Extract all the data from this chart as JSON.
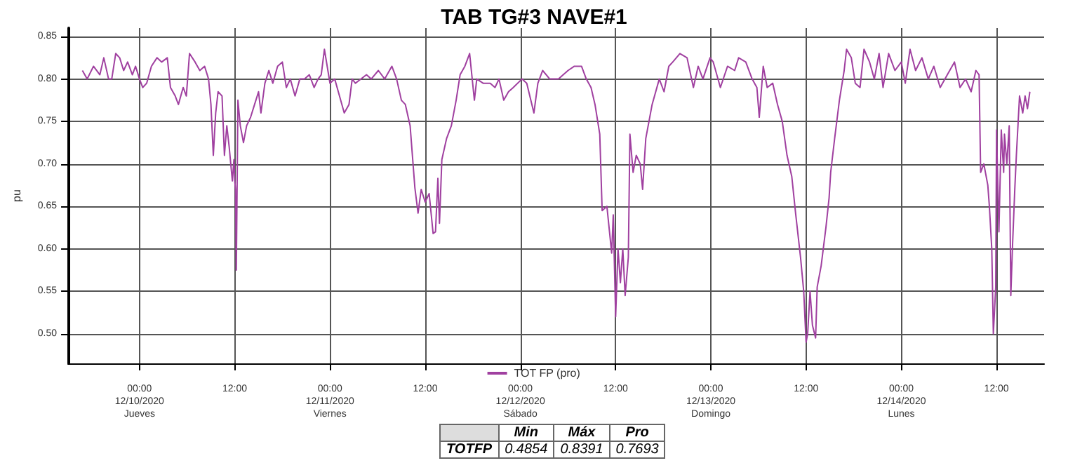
{
  "chart_data": {
    "type": "line",
    "title": "TAB TG#3 NAVE#1",
    "ylabel": "pu",
    "x": [
      "2020-12-09T16:48",
      "2020-12-09T17:24",
      "2020-12-09T18:12",
      "2020-12-09T19:00",
      "2020-12-09T19:30",
      "2020-12-09T20:06",
      "2020-12-09T20:30",
      "2020-12-09T21:00",
      "2020-12-09T21:30",
      "2020-12-09T22:00",
      "2020-12-09T22:30",
      "2020-12-09T23:06",
      "2020-12-09T23:30",
      "2020-12-10T00:00",
      "2020-12-10T00:24",
      "2020-12-10T00:54",
      "2020-12-10T01:30",
      "2020-12-10T02:12",
      "2020-12-10T02:48",
      "2020-12-10T03:30",
      "2020-12-10T03:54",
      "2020-12-10T04:30",
      "2020-12-10T04:54",
      "2020-12-10T05:30",
      "2020-12-10T05:54",
      "2020-12-10T06:18",
      "2020-12-10T07:00",
      "2020-12-10T07:36",
      "2020-12-10T08:12",
      "2020-12-10T08:42",
      "2020-12-10T09:00",
      "2020-12-10T09:18",
      "2020-12-10T09:36",
      "2020-12-10T09:54",
      "2020-12-10T10:24",
      "2020-12-10T10:42",
      "2020-12-10T11:00",
      "2020-12-10T11:18",
      "2020-12-10T11:30",
      "2020-12-10T11:42",
      "2020-12-10T11:54",
      "2020-12-10T12:00",
      "2020-12-10T12:06",
      "2020-12-10T12:12",
      "2020-12-10T12:24",
      "2020-12-10T12:42",
      "2020-12-10T13:06",
      "2020-12-10T13:30",
      "2020-12-10T14:00",
      "2020-12-10T14:30",
      "2020-12-10T15:00",
      "2020-12-10T15:18",
      "2020-12-10T15:48",
      "2020-12-10T16:18",
      "2020-12-10T16:48",
      "2020-12-10T17:24",
      "2020-12-10T18:00",
      "2020-12-10T18:30",
      "2020-12-10T19:00",
      "2020-12-10T19:36",
      "2020-12-10T20:12",
      "2020-12-10T20:48",
      "2020-12-10T21:24",
      "2020-12-10T22:00",
      "2020-12-10T22:30",
      "2020-12-10T22:54",
      "2020-12-10T23:18",
      "2020-12-11T00:00",
      "2020-12-11T00:36",
      "2020-12-11T01:12",
      "2020-12-11T01:48",
      "2020-12-11T02:24",
      "2020-12-11T02:48",
      "2020-12-11T03:12",
      "2020-12-11T04:36",
      "2020-12-11T05:12",
      "2020-12-11T06:06",
      "2020-12-11T06:54",
      "2020-12-11T07:48",
      "2020-12-11T08:24",
      "2020-12-11T09:00",
      "2020-12-11T09:30",
      "2020-12-11T10:06",
      "2020-12-11T10:42",
      "2020-12-11T11:06",
      "2020-12-11T11:30",
      "2020-12-11T12:00",
      "2020-12-11T12:30",
      "2020-12-11T13:00",
      "2020-12-11T13:18",
      "2020-12-11T13:36",
      "2020-12-11T13:48",
      "2020-12-11T14:06",
      "2020-12-11T14:42",
      "2020-12-11T15:18",
      "2020-12-11T15:54",
      "2020-12-11T16:24",
      "2020-12-11T17:00",
      "2020-12-11T17:36",
      "2020-12-11T18:12",
      "2020-12-11T18:30",
      "2020-12-11T19:18",
      "2020-12-11T20:12",
      "2020-12-11T20:48",
      "2020-12-11T21:18",
      "2020-12-11T21:54",
      "2020-12-11T22:30",
      "2020-12-11T23:06",
      "2020-12-12T00:12",
      "2020-12-12T00:48",
      "2020-12-12T01:42",
      "2020-12-12T02:12",
      "2020-12-12T02:48",
      "2020-12-12T03:42",
      "2020-12-12T04:48",
      "2020-12-12T06:00",
      "2020-12-12T06:48",
      "2020-12-12T07:42",
      "2020-12-12T08:18",
      "2020-12-12T08:54",
      "2020-12-12T09:24",
      "2020-12-12T10:00",
      "2020-12-12T10:18",
      "2020-12-12T10:54",
      "2020-12-12T11:30",
      "2020-12-12T11:42",
      "2020-12-12T12:00",
      "2020-12-12T12:18",
      "2020-12-12T12:36",
      "2020-12-12T12:54",
      "2020-12-12T13:12",
      "2020-12-12T13:36",
      "2020-12-12T13:48",
      "2020-12-12T14:12",
      "2020-12-12T14:36",
      "2020-12-12T15:06",
      "2020-12-12T15:24",
      "2020-12-12T15:48",
      "2020-12-12T16:36",
      "2020-12-12T17:30",
      "2020-12-12T18:06",
      "2020-12-12T18:42",
      "2020-12-12T19:12",
      "2020-12-12T20:06",
      "2020-12-12T21:00",
      "2020-12-12T21:48",
      "2020-12-12T22:24",
      "2020-12-12T23:00",
      "2020-12-12T23:54",
      "2020-12-13T00:18",
      "2020-12-13T01:12",
      "2020-12-13T02:06",
      "2020-12-13T03:00",
      "2020-12-13T03:30",
      "2020-12-13T04:24",
      "2020-12-13T05:12",
      "2020-12-13T05:48",
      "2020-12-13T06:06",
      "2020-12-13T06:36",
      "2020-12-13T07:06",
      "2020-12-13T07:48",
      "2020-12-13T08:24",
      "2020-12-13T09:00",
      "2020-12-13T09:36",
      "2020-12-13T10:12",
      "2020-12-13T10:42",
      "2020-12-13T11:18",
      "2020-12-13T11:42",
      "2020-12-13T12:00",
      "2020-12-13T12:12",
      "2020-12-13T12:30",
      "2020-12-13T12:48",
      "2020-12-13T13:12",
      "2020-12-13T13:24",
      "2020-12-13T13:54",
      "2020-12-13T14:30",
      "2020-12-13T14:54",
      "2020-12-13T15:06",
      "2020-12-13T15:36",
      "2020-12-13T16:12",
      "2020-12-13T16:48",
      "2020-12-13T17:06",
      "2020-12-13T17:42",
      "2020-12-13T18:12",
      "2020-12-13T18:48",
      "2020-12-13T19:18",
      "2020-12-13T20:00",
      "2020-12-13T20:36",
      "2020-12-13T21:12",
      "2020-12-13T21:42",
      "2020-12-13T22:24",
      "2020-12-13T23:12",
      "2020-12-14T00:00",
      "2020-12-14T00:30",
      "2020-12-14T01:06",
      "2020-12-14T01:48",
      "2020-12-14T02:36",
      "2020-12-14T03:24",
      "2020-12-14T04:06",
      "2020-12-14T04:54",
      "2020-12-14T05:48",
      "2020-12-14T06:42",
      "2020-12-14T07:24",
      "2020-12-14T08:06",
      "2020-12-14T08:48",
      "2020-12-14T09:24",
      "2020-12-14T09:48",
      "2020-12-14T10:00",
      "2020-12-14T10:24",
      "2020-12-14T10:54",
      "2020-12-14T11:06",
      "2020-12-14T11:24",
      "2020-12-14T11:36",
      "2020-12-14T11:54",
      "2020-12-14T12:00",
      "2020-12-14T12:18",
      "2020-12-14T12:36",
      "2020-12-14T12:54",
      "2020-12-14T13:00",
      "2020-12-14T13:18",
      "2020-12-14T13:36",
      "2020-12-14T13:48",
      "2020-12-14T14:00",
      "2020-12-14T14:18",
      "2020-12-14T14:30",
      "2020-12-14T14:54",
      "2020-12-14T15:18",
      "2020-12-14T15:36",
      "2020-12-14T15:54",
      "2020-12-14T16:12"
    ],
    "series": [
      {
        "name": "TOT FP (pro)",
        "color": "#a040a0",
        "values": [
          0.81,
          0.8,
          0.815,
          0.805,
          0.825,
          0.8,
          0.8,
          0.83,
          0.825,
          0.81,
          0.82,
          0.805,
          0.815,
          0.8,
          0.79,
          0.795,
          0.815,
          0.825,
          0.82,
          0.825,
          0.79,
          0.78,
          0.77,
          0.79,
          0.78,
          0.83,
          0.82,
          0.81,
          0.815,
          0.8,
          0.77,
          0.71,
          0.76,
          0.785,
          0.78,
          0.71,
          0.745,
          0.72,
          0.7,
          0.68,
          0.705,
          0.68,
          0.67,
          0.575,
          0.775,
          0.745,
          0.725,
          0.745,
          0.755,
          0.77,
          0.785,
          0.76,
          0.795,
          0.81,
          0.795,
          0.815,
          0.82,
          0.79,
          0.8,
          0.78,
          0.8,
          0.8,
          0.805,
          0.79,
          0.8,
          0.805,
          0.835,
          0.795,
          0.8,
          0.78,
          0.76,
          0.77,
          0.8,
          0.795,
          0.805,
          0.8,
          0.81,
          0.8,
          0.815,
          0.8,
          0.775,
          0.77,
          0.745,
          0.672,
          0.642,
          0.67,
          0.655,
          0.665,
          0.618,
          0.62,
          0.683,
          0.63,
          0.705,
          0.73,
          0.745,
          0.775,
          0.805,
          0.815,
          0.83,
          0.775,
          0.8,
          0.795,
          0.795,
          0.79,
          0.8,
          0.775,
          0.785,
          0.79,
          0.8,
          0.795,
          0.76,
          0.795,
          0.81,
          0.8,
          0.8,
          0.81,
          0.815,
          0.815,
          0.8,
          0.79,
          0.77,
          0.735,
          0.645,
          0.65,
          0.595,
          0.64,
          0.52,
          0.6,
          0.56,
          0.6,
          0.545,
          0.59,
          0.735,
          0.69,
          0.71,
          0.7,
          0.67,
          0.73,
          0.77,
          0.8,
          0.785,
          0.815,
          0.82,
          0.83,
          0.825,
          0.79,
          0.815,
          0.8,
          0.825,
          0.82,
          0.79,
          0.815,
          0.81,
          0.825,
          0.82,
          0.8,
          0.79,
          0.755,
          0.815,
          0.79,
          0.795,
          0.77,
          0.75,
          0.71,
          0.685,
          0.64,
          0.59,
          0.55,
          0.49,
          0.5,
          0.55,
          0.51,
          0.495,
          0.555,
          0.58,
          0.625,
          0.66,
          0.69,
          0.73,
          0.775,
          0.81,
          0.835,
          0.825,
          0.795,
          0.79,
          0.835,
          0.82,
          0.8,
          0.83,
          0.79,
          0.83,
          0.81,
          0.82,
          0.795,
          0.835,
          0.81,
          0.825,
          0.8,
          0.815,
          0.79,
          0.805,
          0.82,
          0.79,
          0.8,
          0.785,
          0.81,
          0.805,
          0.69,
          0.7,
          0.675,
          0.65,
          0.6,
          0.5,
          0.555,
          0.74,
          0.62,
          0.74,
          0.69,
          0.735,
          0.7,
          0.745,
          0.545,
          0.6,
          0.67,
          0.71,
          0.78,
          0.76,
          0.78,
          0.765,
          0.785
        ]
      }
    ],
    "xlim": [
      "2020-12-09T15:00",
      "2020-12-14T18:00"
    ],
    "xticks": [
      {
        "value": "2020-12-10T00:00",
        "label": "00:00\n12/10/2020\nJueves"
      },
      {
        "value": "2020-12-10T12:00",
        "label": "12:00"
      },
      {
        "value": "2020-12-11T00:00",
        "label": "00:00\n12/11/2020\nViernes"
      },
      {
        "value": "2020-12-11T12:00",
        "label": "12:00"
      },
      {
        "value": "2020-12-12T00:00",
        "label": "00:00\n12/12/2020\nSábado"
      },
      {
        "value": "2020-12-12T12:00",
        "label": "12:00"
      },
      {
        "value": "2020-12-13T00:00",
        "label": "00:00\n12/13/2020\nDomingo"
      },
      {
        "value": "2020-12-13T12:00",
        "label": "12:00"
      },
      {
        "value": "2020-12-14T00:00",
        "label": "00:00\n12/14/2020\nLunes"
      },
      {
        "value": "2020-12-14T12:00",
        "label": "12:00"
      }
    ],
    "ylim": [
      0.465,
      0.86
    ],
    "yticks": [
      {
        "value": 0.5,
        "label": "0.50"
      },
      0.55,
      {
        "value": 0.6,
        "label": "0.60"
      },
      0.65,
      {
        "value": 0.7,
        "label": "0.70"
      },
      0.75,
      {
        "value": 0.8,
        "label": "0.80"
      },
      0.85
    ],
    "grid": true,
    "legend": "bottom",
    "marker": "none",
    "line_style": "solid",
    "annotations": [
      "Min",
      "Máx",
      "Pro",
      "TOTFP",
      "0.4854",
      "0.8391",
      "0.7693"
    ]
  }
}
